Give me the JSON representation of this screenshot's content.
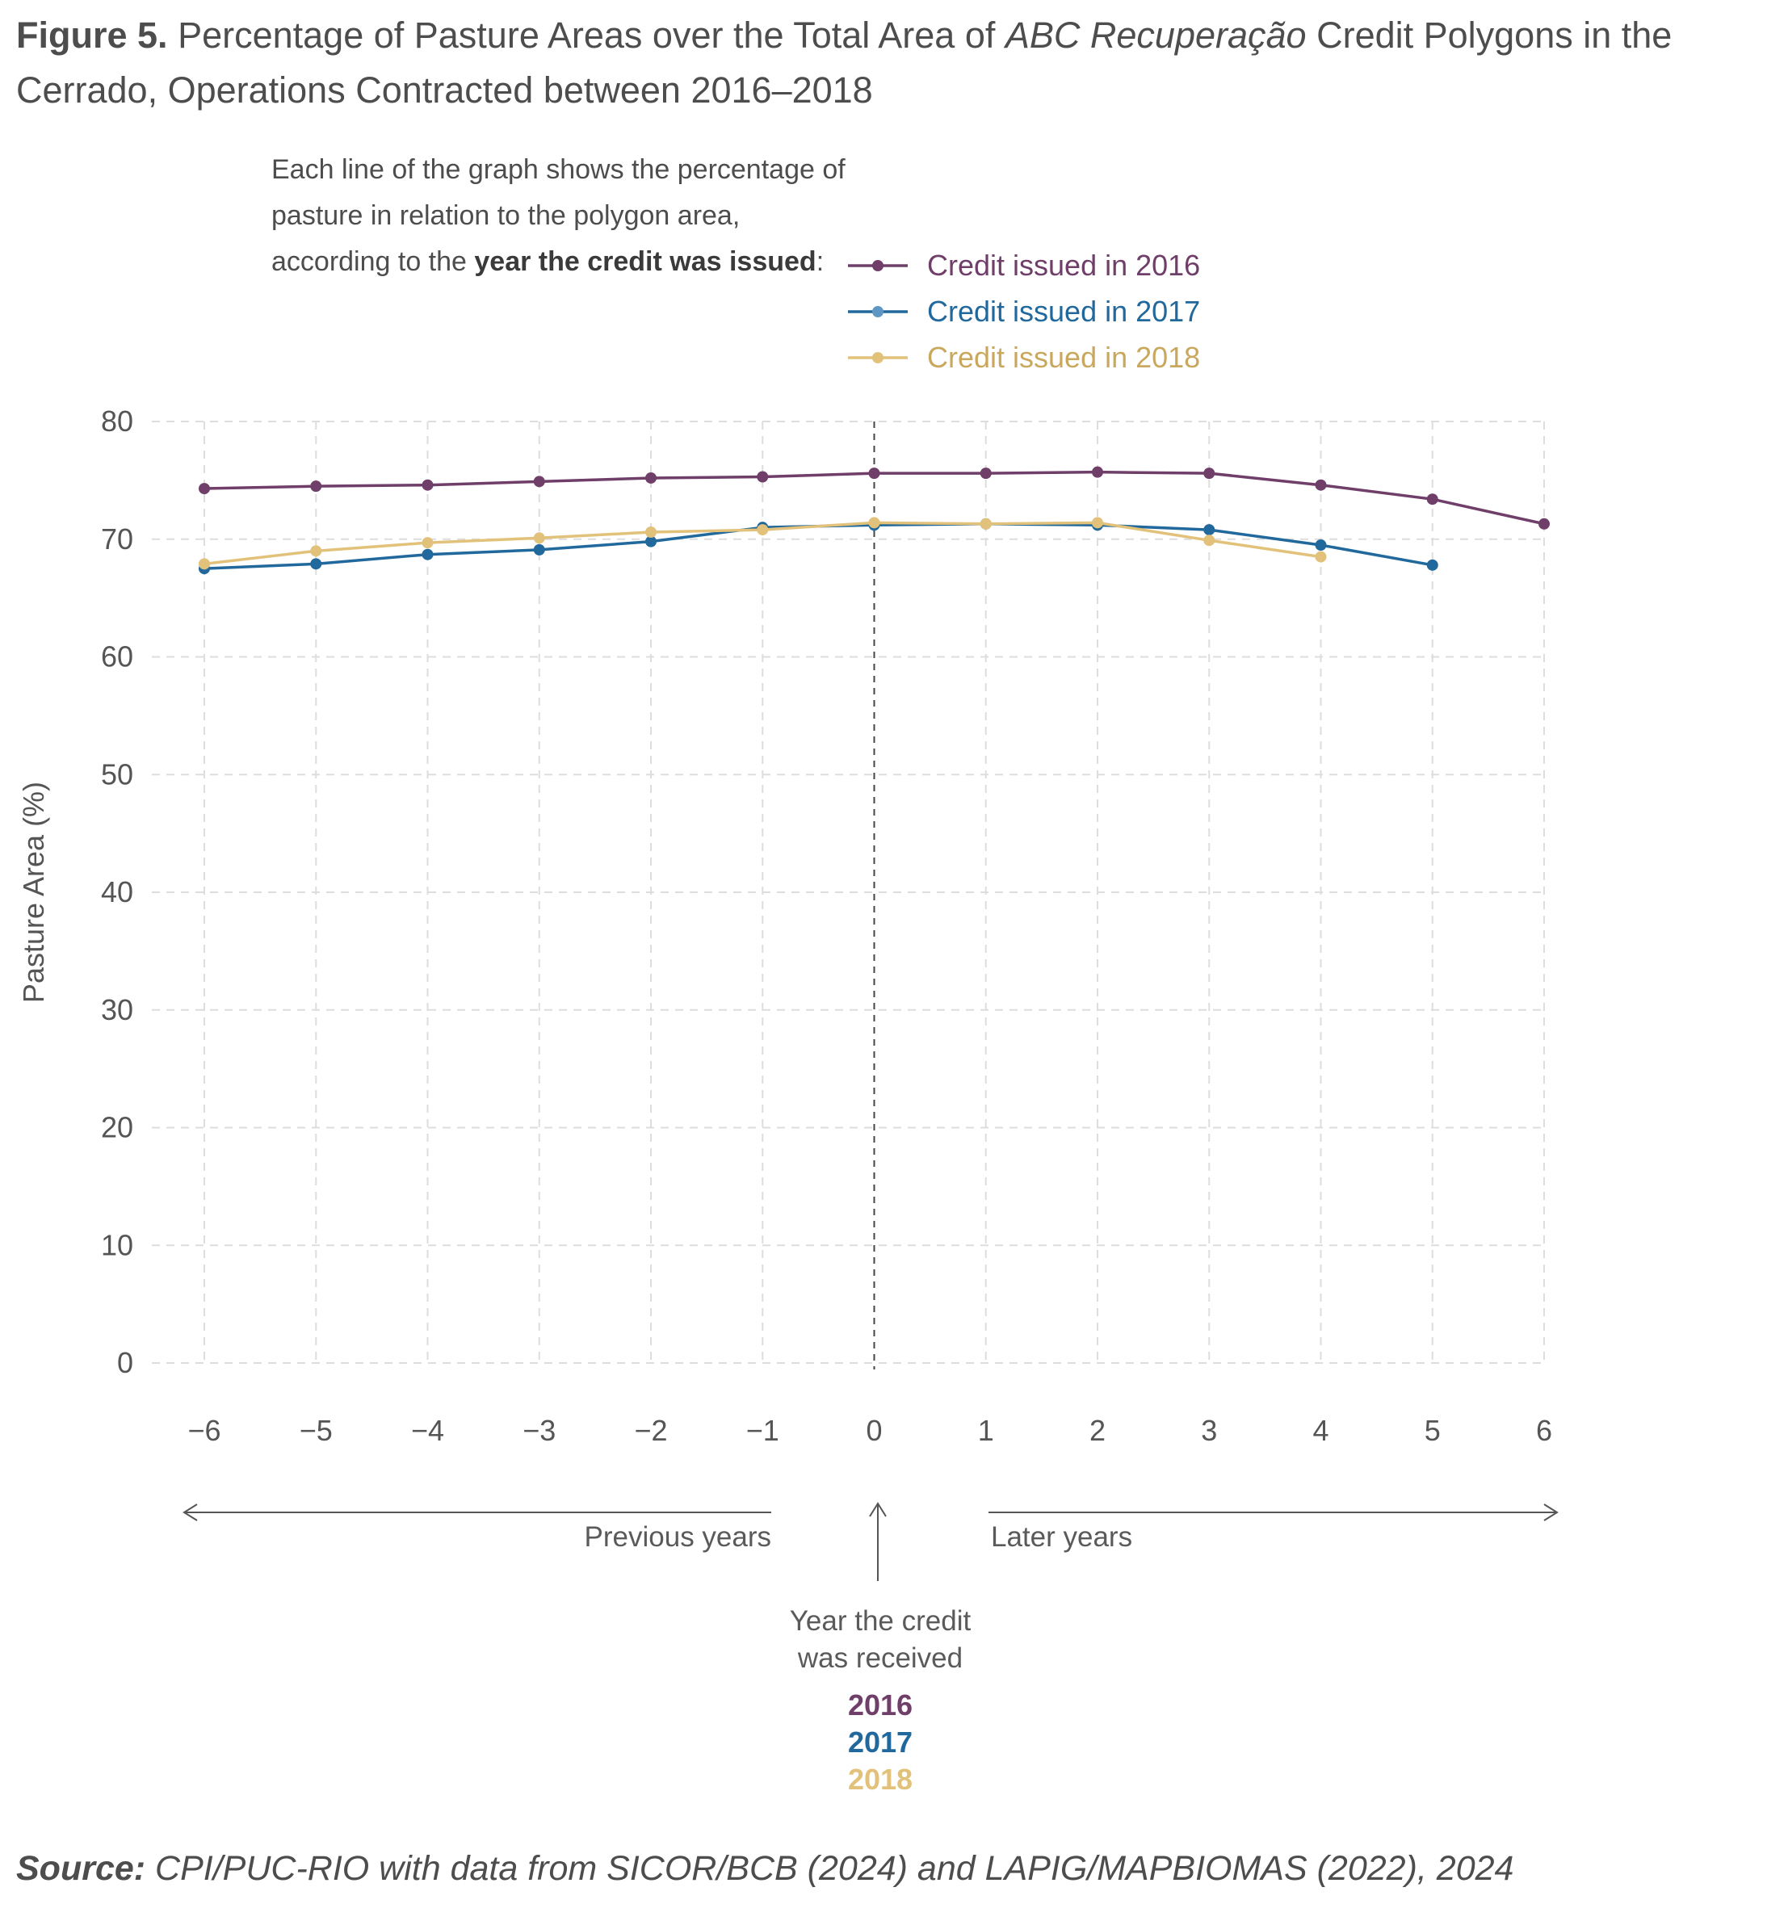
{
  "figure": {
    "label": "Figure 5.",
    "title_pre": "Percentage of Pasture Areas over the Total Area of ",
    "title_italic": "ABC Recuperação",
    "title_post": " Credit Polygons in the Cerrado, Operations Contracted between 2016–2018"
  },
  "intro": {
    "line1": "Each line of the graph shows the percentage of",
    "line2": "pasture in relation to the polygon area,",
    "line3_pre": "according to the ",
    "line3_bold": "year the credit was issued",
    "line3_post": ":"
  },
  "annotations": {
    "previous": "Previous years",
    "later": "Later years",
    "received_line1": "Year the credit",
    "received_line2": "was received",
    "years": [
      "2016",
      "2017",
      "2018"
    ]
  },
  "source": {
    "label": "Source:",
    "text": " CPI/PUC-RIO with data from SICOR/BCB (2024) and LAPIG/MAPBIOMAS (2022), 2024"
  },
  "colors": {
    "s2016": "#6f3e69",
    "s2017": "#21699c",
    "s2018": "#e2c27a",
    "grid": "#dddddd",
    "axis_text": "#555555"
  },
  "chart_data": {
    "type": "line",
    "ylabel": "Pasture Area (%)",
    "xlabel": "",
    "x": [
      -6,
      -5,
      -4,
      -3,
      -2,
      -1,
      0,
      1,
      2,
      3,
      4,
      5,
      6
    ],
    "x_tick_labels": [
      "−6",
      "−5",
      "−4",
      "−3",
      "−2",
      "−1",
      "0",
      "1",
      "2",
      "3",
      "4",
      "5",
      "6"
    ],
    "ylim": [
      0,
      80
    ],
    "y_ticks": [
      0,
      10,
      20,
      30,
      40,
      50,
      60,
      70,
      80
    ],
    "grid": true,
    "legend_position": "top",
    "reference_line_x": 0,
    "series": [
      {
        "name": "Credit issued in 2016",
        "color_key": "s2016",
        "values": [
          74.3,
          74.5,
          74.6,
          74.9,
          75.2,
          75.3,
          75.6,
          75.6,
          75.7,
          75.6,
          74.6,
          73.4,
          71.3
        ]
      },
      {
        "name": "Credit issued in 2017",
        "color_key": "s2017",
        "values": [
          67.5,
          67.9,
          68.7,
          69.1,
          69.8,
          71.0,
          71.2,
          71.3,
          71.2,
          70.8,
          69.5,
          67.8,
          null
        ]
      },
      {
        "name": "Credit issued in 2018",
        "color_key": "s2018",
        "values": [
          67.9,
          69.0,
          69.7,
          70.1,
          70.6,
          70.8,
          71.4,
          71.3,
          71.4,
          69.9,
          68.5,
          null,
          null
        ]
      }
    ]
  }
}
